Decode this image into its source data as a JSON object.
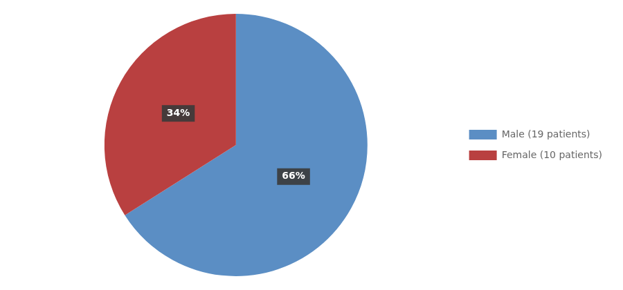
{
  "chart_data": {
    "type": "pie",
    "categories": [
      "Male (19 patients)",
      "Female (10 patients)"
    ],
    "values": [
      66,
      34
    ],
    "value_labels": [
      "66%",
      "34%"
    ],
    "colors": [
      "#5b8ec4",
      "#b94040"
    ],
    "data_labels": true,
    "legend": "right"
  }
}
